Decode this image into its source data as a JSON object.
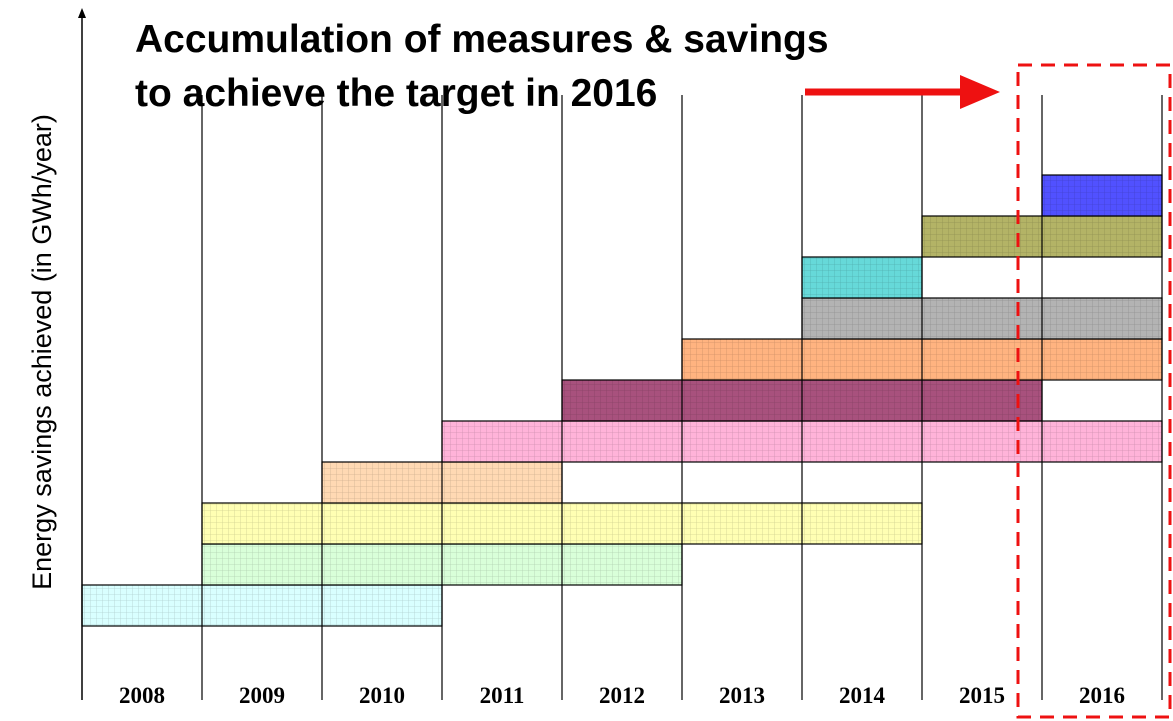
{
  "title": [
    "Accumulation of measures & savings",
    "to achieve the target in 2016"
  ],
  "y_axis_label": "Energy savings achieved (in GWh/year)",
  "years": [
    "2008",
    "2009",
    "2010",
    "2011",
    "2012",
    "2013",
    "2014",
    "2015",
    "2016"
  ]
}
